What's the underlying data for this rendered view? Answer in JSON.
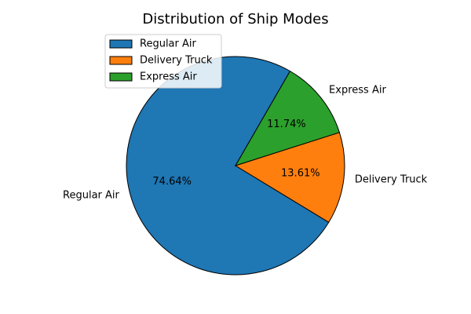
{
  "chart_data": {
    "type": "pie",
    "title": "Distribution of Ship Modes",
    "categories": [
      "Regular Air",
      "Delivery Truck",
      "Express Air"
    ],
    "values": [
      74.64,
      13.61,
      11.74
    ],
    "percent_labels": [
      "74.64%",
      "13.61%",
      "11.74%"
    ],
    "colors": [
      "#1f77b4",
      "#ff7f0e",
      "#2ca02c"
    ],
    "start_angle_deg": 60,
    "legend_placement": "upper-left"
  }
}
